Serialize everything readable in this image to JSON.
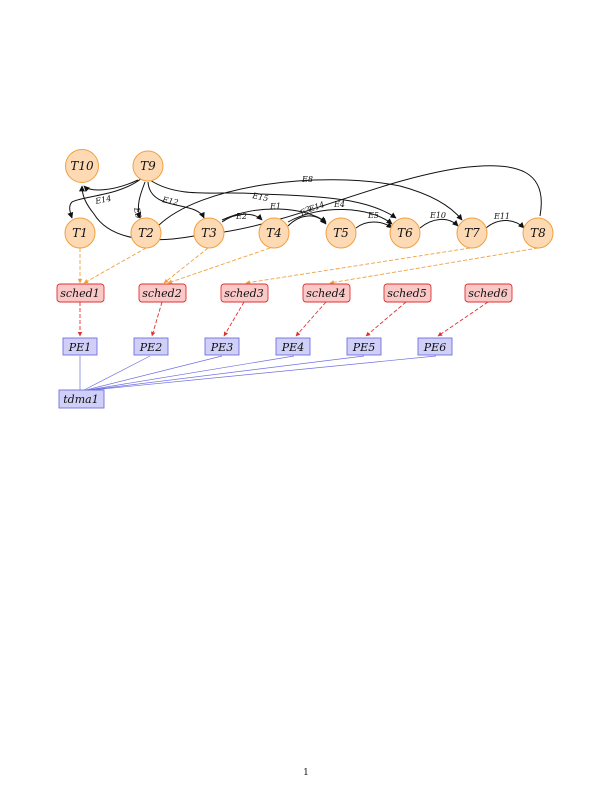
{
  "tasks": [
    {
      "id": "T1",
      "label": "T1"
    },
    {
      "id": "T2",
      "label": "T2"
    },
    {
      "id": "T3",
      "label": "T3"
    },
    {
      "id": "T4",
      "label": "T4"
    },
    {
      "id": "T5",
      "label": "T5"
    },
    {
      "id": "T6",
      "label": "T6"
    },
    {
      "id": "T7",
      "label": "T7"
    },
    {
      "id": "T8",
      "label": "T8"
    },
    {
      "id": "T9",
      "label": "T9"
    },
    {
      "id": "T10",
      "label": "T10"
    }
  ],
  "schedulers": [
    {
      "id": "sched1",
      "label": "sched1"
    },
    {
      "id": "sched2",
      "label": "sched2"
    },
    {
      "id": "sched3",
      "label": "sched3"
    },
    {
      "id": "sched4",
      "label": "sched4"
    },
    {
      "id": "sched5",
      "label": "sched5"
    },
    {
      "id": "sched6",
      "label": "sched6"
    }
  ],
  "processors": [
    {
      "id": "PE1",
      "label": "PE1"
    },
    {
      "id": "PE2",
      "label": "PE2"
    },
    {
      "id": "PE3",
      "label": "PE3"
    },
    {
      "id": "PE4",
      "label": "PE4"
    },
    {
      "id": "PE5",
      "label": "PE5"
    },
    {
      "id": "PE6",
      "label": "PE6"
    }
  ],
  "bus": {
    "id": "tdma1",
    "label": "tdma1"
  },
  "edges": [
    {
      "label": "E1",
      "from": "T3",
      "to": "T5"
    },
    {
      "label": "E2",
      "from": "T3",
      "to": "T4"
    },
    {
      "label": "E3",
      "from": "T4",
      "to": "T5"
    },
    {
      "label": "E4",
      "from": "T4",
      "to": "T6"
    },
    {
      "label": "E5",
      "from": "T5",
      "to": "T6"
    },
    {
      "label": "E6",
      "from": "T4",
      "to": "T6"
    },
    {
      "label": "E8",
      "from": "T2",
      "to": "T7"
    },
    {
      "label": "E9",
      "from": "T9",
      "to": "T2"
    },
    {
      "label": "E10",
      "from": "T6",
      "to": "T7"
    },
    {
      "label": "E11",
      "from": "T7",
      "to": "T8"
    },
    {
      "label": "E12",
      "from": "T9",
      "to": "T3"
    },
    {
      "label": "E13",
      "from": "T9",
      "to": "T1"
    },
    {
      "label": "E14",
      "from": "T4",
      "to": "T5"
    },
    {
      "label": "E15",
      "from": "T3",
      "to": "T6"
    }
  ],
  "colors": {
    "task_fill": "#fdd9b4",
    "task_stroke": "#f0a040",
    "sched_fill": "#fbc8c8",
    "sched_stroke": "#e03030",
    "pe_fill": "#cfcff7",
    "pe_stroke": "#7070e0",
    "mapping_arrow": "#f0a040",
    "sched_arrow": "#e03030",
    "bus_line": "#7070e0",
    "edge": "#111111"
  },
  "page_number": "1"
}
